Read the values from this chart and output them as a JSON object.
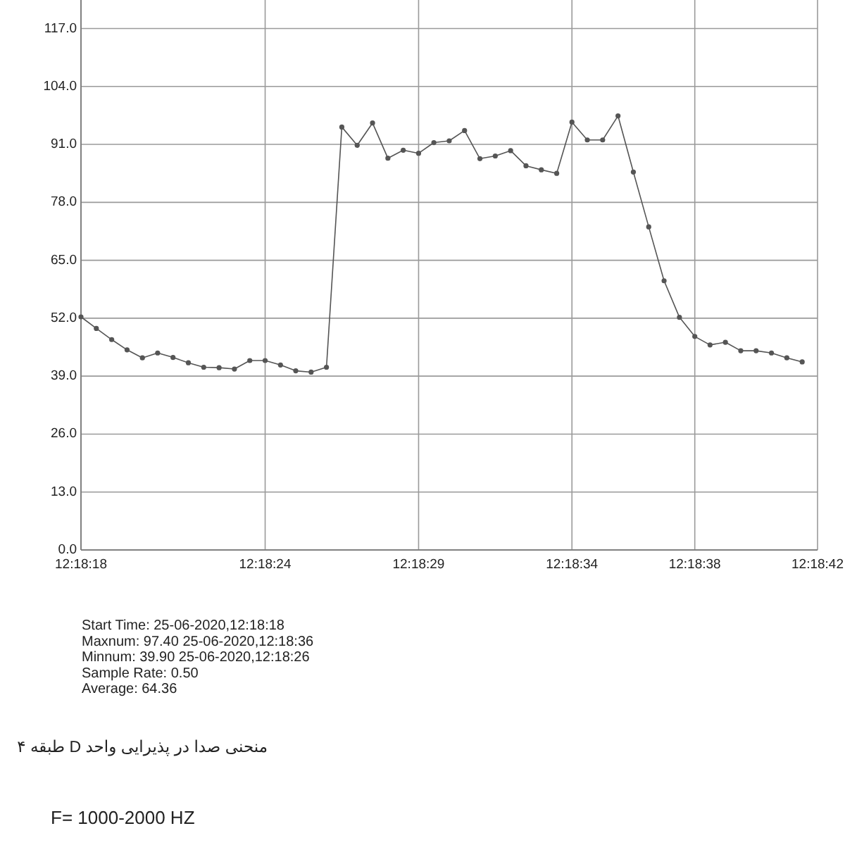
{
  "chart_data": {
    "type": "line",
    "x": [
      12.305,
      12.305139,
      12.305278,
      12.305417,
      12.305556,
      12.305694,
      12.305833,
      12.305972,
      12.306111,
      12.30625,
      12.306389,
      12.306528,
      12.306667,
      12.306806,
      12.306944,
      12.307083,
      12.307222,
      12.307361,
      12.3075,
      12.307639,
      12.307778,
      12.307917,
      12.308056,
      12.308194,
      12.308333,
      12.308472,
      12.308611,
      12.30875,
      12.308889,
      12.309028,
      12.309167,
      12.309306,
      12.309444,
      12.309583,
      12.309722,
      12.309861,
      12.31,
      12.310139,
      12.310278,
      12.310417,
      12.310556,
      12.310694,
      12.310833,
      12.310972,
      12.311111,
      12.31125,
      12.311389,
      12.311528
    ],
    "series": [
      {
        "color": "#555555",
        "values": [
          52.3,
          49.7,
          47.2,
          44.9,
          43.1,
          44.2,
          43.2,
          42.0,
          41.0,
          40.9,
          40.6,
          42.5,
          42.5,
          41.5,
          40.2,
          39.9,
          41.0,
          94.9,
          90.8,
          95.8,
          87.9,
          89.7,
          89.0,
          91.4,
          91.8,
          94.1,
          87.8,
          88.4,
          89.6,
          86.2,
          85.3,
          84.5,
          96.0,
          92.0,
          92.0,
          97.4,
          84.8,
          72.5,
          60.4,
          52.2,
          47.9,
          46.0,
          46.6,
          44.7,
          44.7,
          44.2,
          43.1,
          42.2
        ]
      }
    ],
    "xlim": [
      12.305,
      12.311667
    ],
    "xticks": [
      {
        "value": 12.305,
        "label": "12:18:18"
      },
      {
        "value": 12.306667,
        "label": "12:18:24"
      },
      {
        "value": 12.308056,
        "label": "12:18:29"
      },
      {
        "value": 12.309444,
        "label": "12:18:34"
      },
      {
        "value": 12.310556,
        "label": "12:18:38"
      },
      {
        "value": 12.311667,
        "label": "12:18:42"
      }
    ],
    "ylim": [
      0,
      123.4
    ],
    "yticks": [
      {
        "value": 0,
        "label": "0.0"
      },
      {
        "value": 13,
        "label": "13.0"
      },
      {
        "value": 26,
        "label": "26.0"
      },
      {
        "value": 39,
        "label": "39.0"
      },
      {
        "value": 52,
        "label": "52.0"
      },
      {
        "value": 65,
        "label": "65.0"
      },
      {
        "value": 78,
        "label": "78.0"
      },
      {
        "value": 91,
        "label": "91.0"
      },
      {
        "value": 104,
        "label": "104.0"
      },
      {
        "value": 117,
        "label": "117.0"
      }
    ],
    "grid": true,
    "marker": "circle",
    "line_style": "solid",
    "annotations": [
      "Start Time: 25-06-2020,12:18:18",
      "Maxnum: 97.40 25-06-2020,12:18:36",
      "Minnum: 39.90 25-06-2020,12:18:26",
      "Sample Rate: 0.50",
      "Average: 64.36",
      "منحنی صدا در پذیرایی واحد D طبقه ۴",
      "F= 1000-2000 HZ"
    ]
  }
}
